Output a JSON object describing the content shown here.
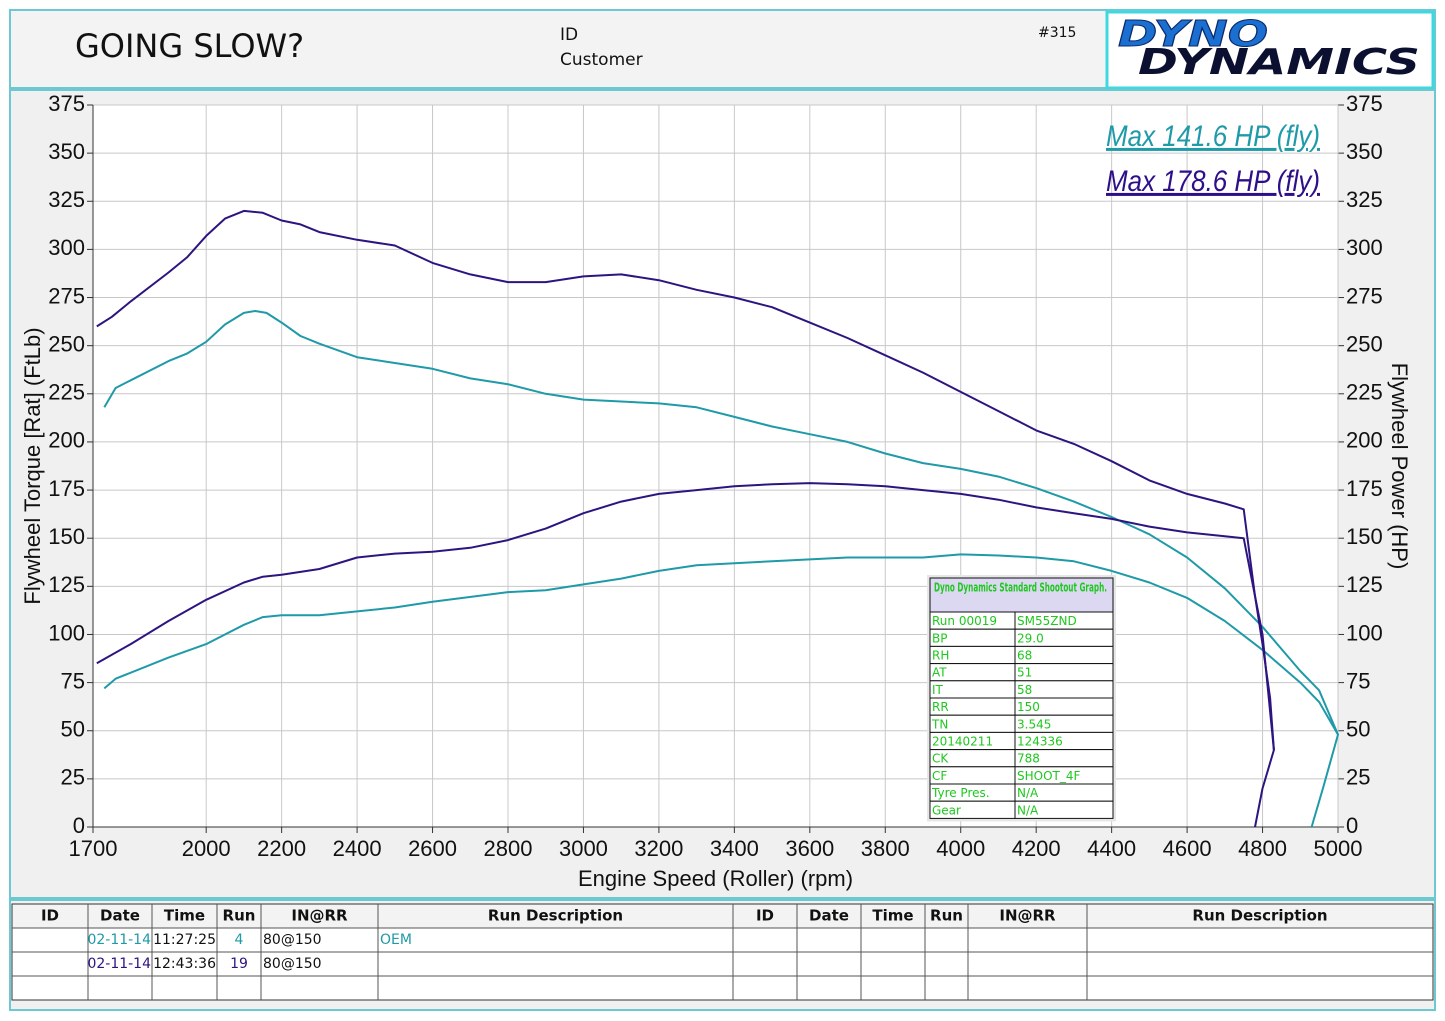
{
  "header": {
    "title": "GOING SLOW?",
    "id_label": "ID",
    "customer_label": "Customer",
    "sheet_number": "#315",
    "logo_top": "DYNO",
    "logo_bottom": "DYNAMICS"
  },
  "chart_data": {
    "type": "line",
    "x_label": "Engine Speed (Roller) (rpm)",
    "y_label": "Flywheel Torque [Rat] (FtLb)",
    "y2_label": "Flywheel Power (HP)",
    "xlim": [
      1700,
      5000
    ],
    "xticks": [
      1700,
      2000,
      2200,
      2400,
      2600,
      2800,
      3000,
      3200,
      3400,
      3600,
      3800,
      4000,
      4200,
      4400,
      4600,
      4800,
      5000
    ],
    "ylim": [
      0,
      375
    ],
    "yticks": [
      0,
      25,
      50,
      75,
      100,
      125,
      150,
      175,
      200,
      225,
      250,
      275,
      300,
      325,
      350,
      375
    ],
    "y2lim": [
      0,
      375
    ],
    "y2ticks": [
      0,
      25,
      50,
      75,
      100,
      125,
      150,
      175,
      200,
      225,
      250,
      275,
      300,
      325,
      350,
      375
    ],
    "grid": true,
    "annotations": [
      {
        "text": "Max 141.6 HP (fly)",
        "color": "#1f9aa8"
      },
      {
        "text": "Max 178.6 HP (fly)",
        "color": "#2e0f8a"
      }
    ],
    "series": [
      {
        "color": "#1f9aa8",
        "x": [
          1730,
          1760,
          1800,
          1900,
          1950,
          2000,
          2050,
          2100,
          2130,
          2160,
          2200,
          2250,
          2300,
          2400,
          2500,
          2600,
          2700,
          2800,
          2900,
          3000,
          3100,
          3200,
          3300,
          3400,
          3500,
          3600,
          3700,
          3800,
          3900,
          4000,
          4100,
          4200,
          4300,
          4400,
          4500,
          4600,
          4700,
          4800,
          4900,
          4950,
          5000
        ],
        "values": [
          218,
          228,
          232,
          242,
          246,
          252,
          261,
          267,
          268,
          267,
          262,
          255,
          251,
          244,
          241,
          238,
          233,
          230,
          225,
          222,
          221,
          220,
          218,
          213,
          208,
          204,
          200,
          194,
          189,
          186,
          182,
          176,
          169,
          161,
          152,
          140,
          124,
          104,
          81,
          71,
          48
        ]
      },
      {
        "color": "#1f9aa8",
        "axis": "y2",
        "x": [
          1730,
          1760,
          1900,
          2000,
          2100,
          2150,
          2200,
          2300,
          2400,
          2500,
          2600,
          2800,
          2900,
          3000,
          3100,
          3200,
          3300,
          3400,
          3500,
          3600,
          3700,
          3800,
          3900,
          4000,
          4100,
          4200,
          4300,
          4400,
          4500,
          4600,
          4700,
          4800,
          4900,
          4950,
          5000,
          4960,
          4930
        ],
        "values": [
          72,
          77,
          88,
          95,
          105,
          109,
          110,
          110,
          112,
          114,
          117,
          122,
          123,
          126,
          129,
          133,
          136,
          137,
          138,
          139,
          140,
          140,
          140,
          141.6,
          141,
          140,
          138,
          133,
          127,
          119,
          107,
          92,
          75,
          65,
          48,
          20,
          0
        ]
      },
      {
        "color": "#2e1480",
        "x": [
          1710,
          1750,
          1800,
          1900,
          1950,
          2000,
          2050,
          2100,
          2150,
          2200,
          2250,
          2300,
          2400,
          2500,
          2600,
          2700,
          2800,
          2900,
          3000,
          3100,
          3200,
          3300,
          3400,
          3500,
          3600,
          3700,
          3800,
          3900,
          4000,
          4100,
          4200,
          4300,
          4400,
          4500,
          4600,
          4700,
          4750,
          4780,
          4800,
          4820,
          4830
        ],
        "values": [
          260,
          265,
          273,
          288,
          296,
          307,
          316,
          320,
          319,
          315,
          313,
          309,
          305,
          302,
          293,
          287,
          283,
          283,
          286,
          287,
          284,
          279,
          275,
          270,
          262,
          254,
          245,
          236,
          226,
          216,
          206,
          199,
          190,
          180,
          173,
          168,
          165,
          120,
          100,
          60,
          40
        ]
      },
      {
        "color": "#2e1480",
        "axis": "y2",
        "x": [
          1710,
          1800,
          1900,
          2000,
          2100,
          2150,
          2200,
          2300,
          2400,
          2500,
          2600,
          2700,
          2800,
          2900,
          3000,
          3100,
          3200,
          3300,
          3400,
          3500,
          3600,
          3700,
          3800,
          3900,
          4000,
          4100,
          4200,
          4300,
          4400,
          4500,
          4600,
          4700,
          4750,
          4780,
          4800,
          4820,
          4830,
          4800,
          4780
        ],
        "values": [
          85,
          95,
          107,
          118,
          127,
          130,
          131,
          134,
          140,
          142,
          143,
          145,
          149,
          155,
          163,
          169,
          173,
          175,
          177,
          178,
          178.6,
          178,
          177,
          175,
          173,
          170,
          166,
          163,
          160,
          156,
          153,
          151,
          150,
          120,
          95,
          67,
          40,
          20,
          0
        ]
      }
    ]
  },
  "info_box": {
    "title": "Dyno Dynamics Standard Shootout Graph.",
    "rows": [
      [
        "Run 00019",
        "SM55ZND"
      ],
      [
        "BP",
        "29.0"
      ],
      [
        "RH",
        "68"
      ],
      [
        "AT",
        "51"
      ],
      [
        "IT",
        "58"
      ],
      [
        "RR",
        "150"
      ],
      [
        "TN",
        "3.545"
      ],
      [
        "20140211",
        "124336"
      ],
      [
        "CK",
        "788"
      ],
      [
        "CF",
        "SHOOT_4F"
      ],
      [
        "Tyre Pres.",
        "N/A"
      ],
      [
        "Gear",
        "N/A"
      ]
    ]
  },
  "run_table": {
    "headers": [
      "ID",
      "Date",
      "Time",
      "Run",
      "IN@RR",
      "Run Description",
      "ID",
      "Date",
      "Time",
      "Run",
      "IN@RR",
      "Run Description"
    ],
    "rows": [
      {
        "date": "02-11-14",
        "time": "11:27:25",
        "run": "4",
        "inrr": "80@150",
        "description": "OEM",
        "color": "#1f9aa8"
      },
      {
        "date": "02-11-14",
        "time": "12:43:36",
        "run": "19",
        "inrr": "80@150",
        "color": "#2e1480"
      }
    ]
  }
}
